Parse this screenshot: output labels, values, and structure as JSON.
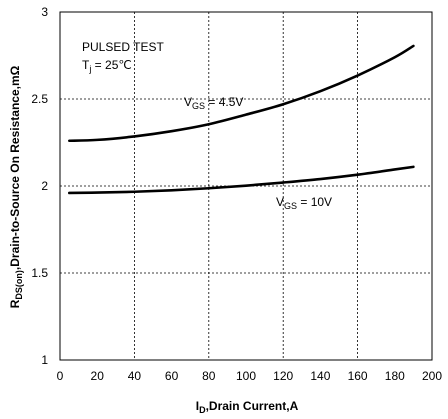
{
  "chart_data": {
    "type": "line",
    "xlabel": {
      "main": "I",
      "sub": "D",
      "rest": ",Drain  Current,A"
    },
    "ylabel": {
      "main": "R",
      "sub": "DS(on)",
      "rest": ",Drain-to-Source On Resistance,mΩ"
    },
    "xlim": [
      0,
      200
    ],
    "ylim": [
      1,
      3
    ],
    "x_ticks": [
      "0",
      "20",
      "40",
      "60",
      "80",
      "100",
      "120",
      "140",
      "160",
      "180",
      "200"
    ],
    "y_ticks": [
      "1",
      "1.5",
      "2",
      "2.5",
      "3"
    ],
    "grid": "dashed",
    "annotations": {
      "test_line1": "PULSED TEST",
      "test_line2_main": "T",
      "test_line2_sub": "j",
      "test_line2_rest": " = 25℃",
      "vgs45_main": "V",
      "vgs45_sub": "GS",
      "vgs45_rest": " = 4.5V",
      "vgs10_main": "V",
      "vgs10_sub": "GS",
      "vgs10_rest": " =  10V"
    },
    "series": [
      {
        "label": "VGS = 4.5V",
        "x": [
          5,
          20,
          40,
          60,
          80,
          100,
          120,
          140,
          160,
          180,
          190
        ],
        "y": [
          2.26,
          2.265,
          2.285,
          2.315,
          2.355,
          2.41,
          2.47,
          2.545,
          2.635,
          2.74,
          2.805
        ]
      },
      {
        "label": "VGS = 10V",
        "x": [
          5,
          20,
          40,
          60,
          80,
          100,
          120,
          140,
          160,
          180,
          190
        ],
        "y": [
          1.96,
          1.962,
          1.967,
          1.975,
          1.987,
          2.002,
          2.02,
          2.04,
          2.065,
          2.095,
          2.11
        ]
      }
    ]
  }
}
